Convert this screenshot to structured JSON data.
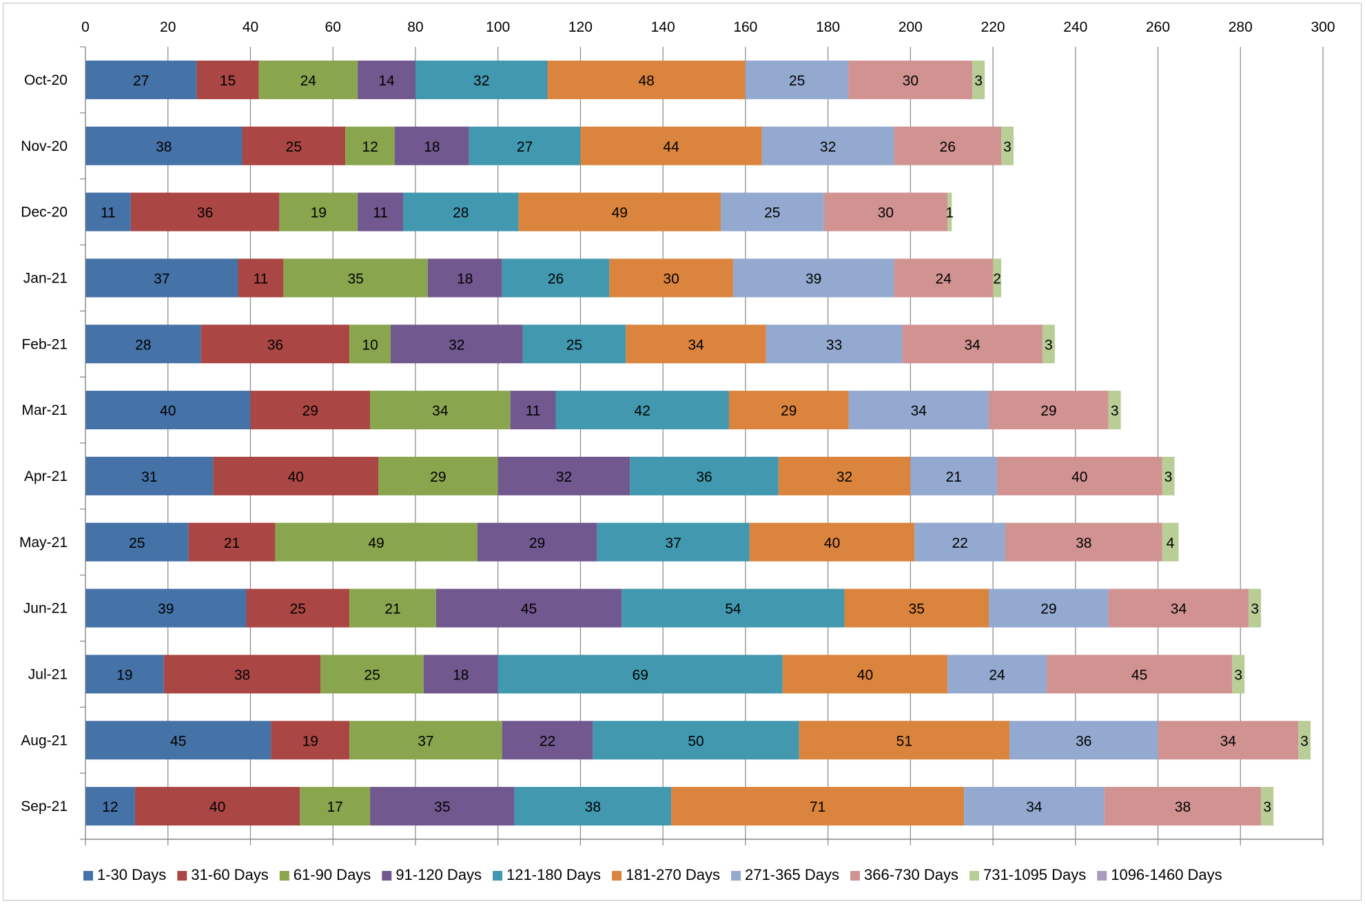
{
  "chart_data": {
    "type": "bar",
    "orientation": "horizontal",
    "stacked": true,
    "title": "",
    "xlabel": "",
    "ylabel": "",
    "xlim": [
      0,
      300
    ],
    "x_ticks": [
      0,
      20,
      40,
      60,
      80,
      100,
      120,
      140,
      160,
      180,
      200,
      220,
      240,
      260,
      280,
      300
    ],
    "x_axis_position": "top",
    "grid": "vertical major gridlines",
    "legend_position": "bottom",
    "categories": [
      "Oct-20",
      "Nov-20",
      "Dec-20",
      "Jan-21",
      "Feb-21",
      "Mar-21",
      "Apr-21",
      "May-21",
      "Jun-21",
      "Jul-21",
      "Aug-21",
      "Sep-21"
    ],
    "series": [
      {
        "name": "1-30 Days",
        "color": "#4572a7",
        "values": [
          27,
          38,
          11,
          37,
          28,
          40,
          31,
          25,
          39,
          19,
          45,
          12
        ]
      },
      {
        "name": "31-60 Days",
        "color": "#aa4643",
        "values": [
          15,
          25,
          36,
          11,
          36,
          29,
          40,
          21,
          25,
          38,
          19,
          40
        ]
      },
      {
        "name": "61-90 Days",
        "color": "#89a54e",
        "values": [
          24,
          12,
          19,
          35,
          10,
          34,
          29,
          49,
          21,
          25,
          37,
          17
        ]
      },
      {
        "name": "91-120 Days",
        "color": "#71588f",
        "values": [
          14,
          18,
          11,
          18,
          32,
          11,
          32,
          29,
          45,
          18,
          22,
          35
        ]
      },
      {
        "name": "121-180 Days",
        "color": "#4198af",
        "values": [
          32,
          27,
          28,
          26,
          25,
          42,
          36,
          37,
          54,
          69,
          50,
          38
        ]
      },
      {
        "name": "181-270 Days",
        "color": "#db843d",
        "values": [
          48,
          44,
          49,
          30,
          34,
          29,
          32,
          40,
          35,
          40,
          51,
          71
        ]
      },
      {
        "name": "271-365 Days",
        "color": "#93a9cf",
        "values": [
          25,
          32,
          25,
          39,
          33,
          34,
          21,
          22,
          29,
          24,
          36,
          34
        ]
      },
      {
        "name": "366-730 Days",
        "color": "#d19392",
        "values": [
          30,
          26,
          30,
          24,
          34,
          29,
          40,
          38,
          34,
          45,
          34,
          38
        ]
      },
      {
        "name": "731-1095 Days",
        "color": "#b9cd96",
        "values": [
          3,
          3,
          1,
          2,
          3,
          3,
          3,
          4,
          3,
          3,
          3,
          3
        ]
      },
      {
        "name": "1096-1460 Days",
        "color": "#a99bbd",
        "values": [
          0,
          0,
          0,
          0,
          0,
          0,
          0,
          0,
          0,
          0,
          0,
          0
        ]
      }
    ]
  }
}
